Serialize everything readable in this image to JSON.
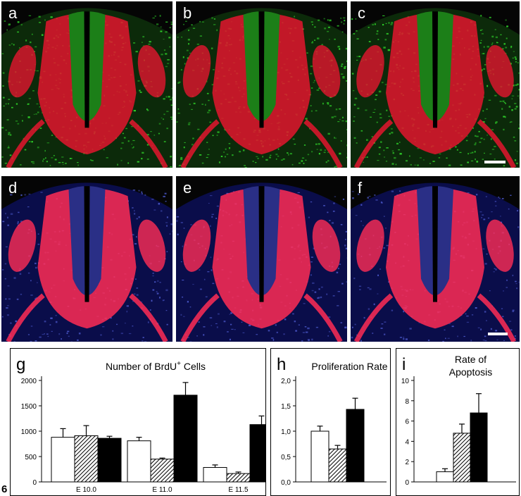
{
  "figure": {
    "number": "6"
  },
  "panels": [
    {
      "id": "a",
      "label": "a",
      "row": "top"
    },
    {
      "id": "b",
      "label": "b",
      "row": "top"
    },
    {
      "id": "c",
      "label": "c",
      "row": "top"
    },
    {
      "id": "d",
      "label": "d",
      "row": "bottom"
    },
    {
      "id": "e",
      "label": "e",
      "row": "bottom"
    },
    {
      "id": "f",
      "label": "f",
      "row": "bottom"
    }
  ],
  "colors": {
    "top_background": "#0c2a0a",
    "top_cells": "#2fd32a",
    "bottom_background": "#0a0d4a",
    "bottom_cells": "#4a57c8",
    "fibers": "#e3152e",
    "bottom_fibers": "#ff2d55"
  },
  "chart_data": [
    {
      "id": "g",
      "label": "g",
      "type": "bar",
      "title": "Number of BrdU",
      "title_superscript": "+",
      "title_suffix": " Cells",
      "categories": [
        "E 10.0",
        "E 11.0",
        "E 11.5"
      ],
      "series": [
        {
          "fill": "white",
          "values": [
            880,
            810,
            285
          ],
          "errors": [
            170,
            70,
            50
          ]
        },
        {
          "fill": "hatched",
          "values": [
            910,
            450,
            165
          ],
          "errors": [
            200,
            20,
            30
          ]
        },
        {
          "fill": "black",
          "values": [
            860,
            1710,
            1130
          ],
          "errors": [
            40,
            250,
            170
          ]
        }
      ],
      "ylim": [
        0,
        2000
      ],
      "yticks": [
        "0",
        "500",
        "1000",
        "1500",
        "2000"
      ],
      "ytick_values": [
        0,
        500,
        1000,
        1500,
        2000
      ]
    },
    {
      "id": "h",
      "label": "h",
      "type": "bar",
      "title": "Proliferation Rate",
      "categories": [
        ""
      ],
      "series": [
        {
          "fill": "white",
          "values": [
            1.0
          ],
          "errors": [
            0.1
          ]
        },
        {
          "fill": "hatched",
          "values": [
            0.65
          ],
          "errors": [
            0.07
          ]
        },
        {
          "fill": "black",
          "values": [
            1.43
          ],
          "errors": [
            0.22
          ]
        }
      ],
      "ylim": [
        0,
        2.0
      ],
      "yticks": [
        "0,0",
        "0,5",
        "1,0",
        "1,5",
        "2,0"
      ],
      "ytick_values": [
        0,
        0.5,
        1.0,
        1.5,
        2.0
      ]
    },
    {
      "id": "i",
      "label": "i",
      "type": "bar",
      "title": "Rate of",
      "title_line2": "Apoptosis",
      "categories": [
        ""
      ],
      "series": [
        {
          "fill": "white",
          "values": [
            1.0
          ],
          "errors": [
            0.3
          ]
        },
        {
          "fill": "hatched",
          "values": [
            4.8
          ],
          "errors": [
            0.9
          ]
        },
        {
          "fill": "black",
          "values": [
            6.8
          ],
          "errors": [
            1.9
          ]
        }
      ],
      "ylim": [
        0,
        10
      ],
      "yticks": [
        "0",
        "2",
        "4",
        "6",
        "8",
        "10"
      ],
      "ytick_values": [
        0,
        2,
        4,
        6,
        8,
        10
      ]
    }
  ]
}
